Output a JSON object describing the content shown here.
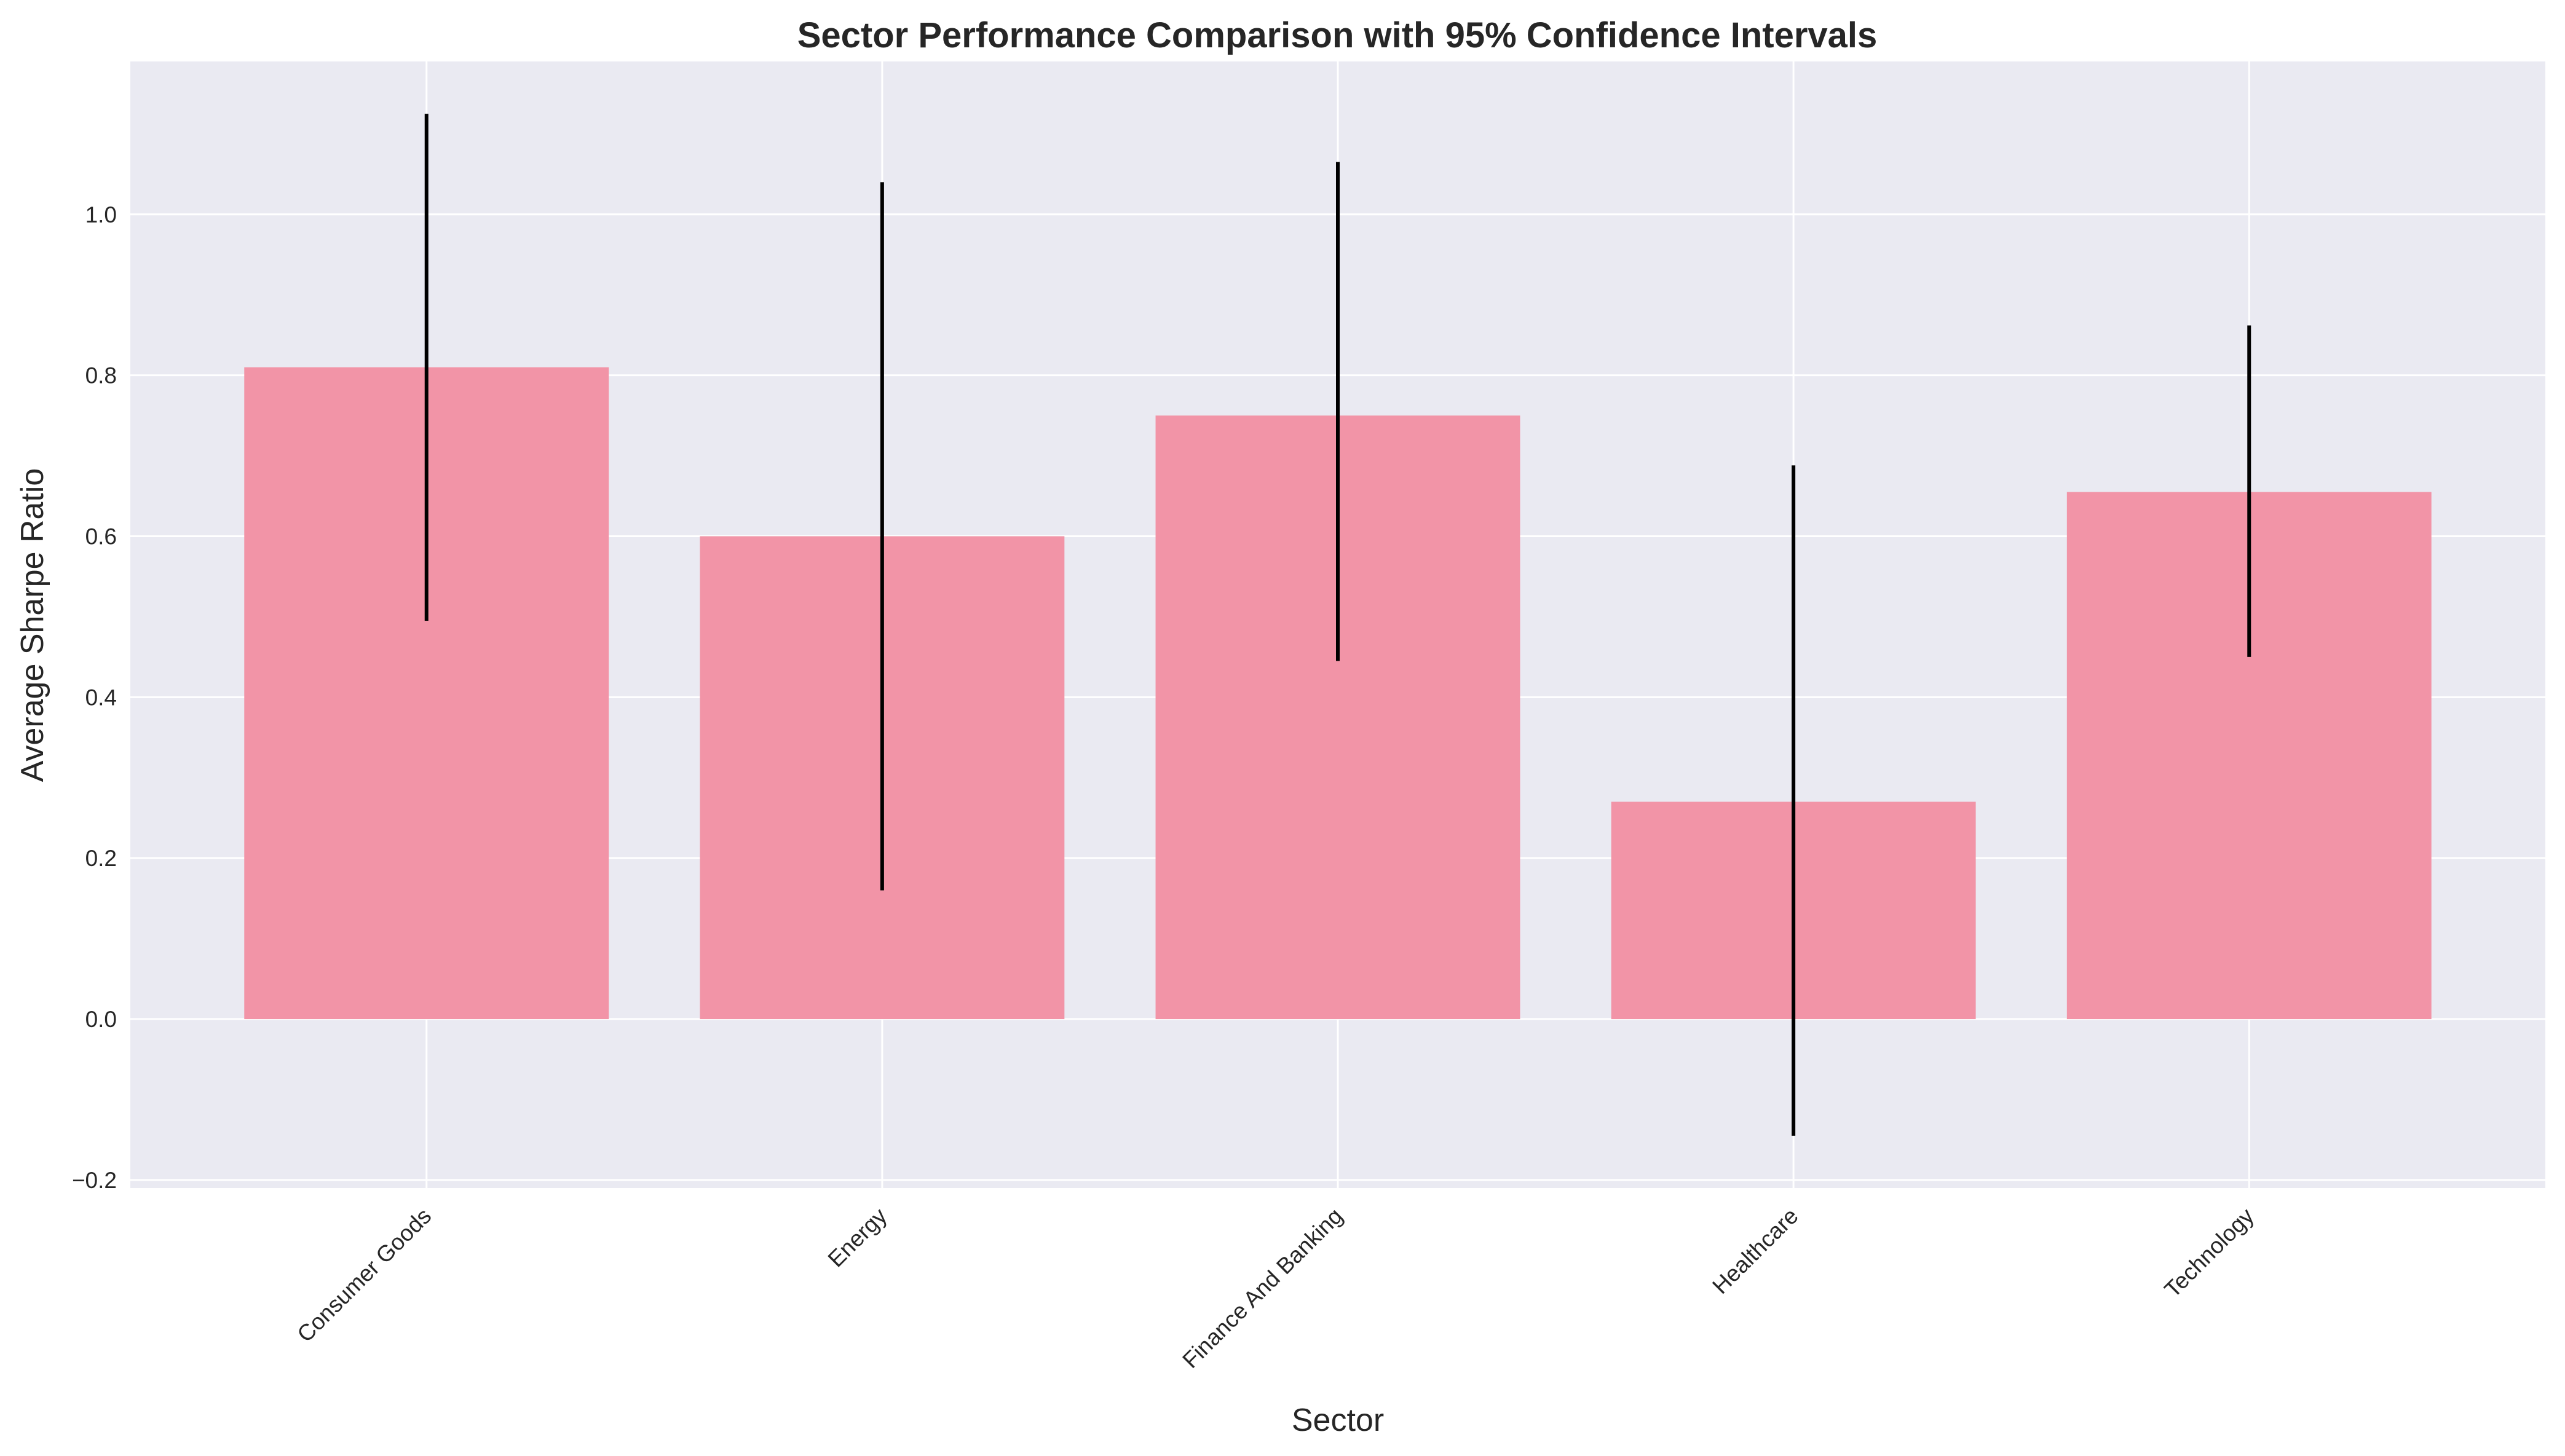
{
  "chart_data": {
    "type": "bar",
    "title": "Sector Performance Comparison with 95% Confidence Intervals",
    "xlabel": "Sector",
    "ylabel": "Average Sharpe Ratio",
    "categories": [
      "Consumer Goods",
      "Energy",
      "Finance And Banking",
      "Healthcare",
      "Technology"
    ],
    "values": [
      0.81,
      0.6,
      0.75,
      0.27,
      0.655
    ],
    "error_bars": [
      {
        "low": 0.495,
        "high": 1.125
      },
      {
        "low": 0.16,
        "high": 1.04
      },
      {
        "low": 0.445,
        "high": 1.065
      },
      {
        "low": -0.145,
        "high": 0.688
      },
      {
        "low": 0.45,
        "high": 0.862
      }
    ],
    "ylim": [
      -0.21,
      1.19
    ],
    "yticks": [
      -0.2,
      0.0,
      0.2,
      0.4,
      0.6,
      0.8,
      1.0
    ],
    "ytick_labels": [
      "−0.2",
      "0.0",
      "0.2",
      "0.4",
      "0.6",
      "0.8",
      "1.0"
    ],
    "grid": true,
    "legend": "none",
    "colors": {
      "bar": "#f294a7",
      "error_bar": "#000000",
      "plot_background": "#eaeaf2",
      "grid": "#ffffff",
      "text": "#262626"
    }
  }
}
